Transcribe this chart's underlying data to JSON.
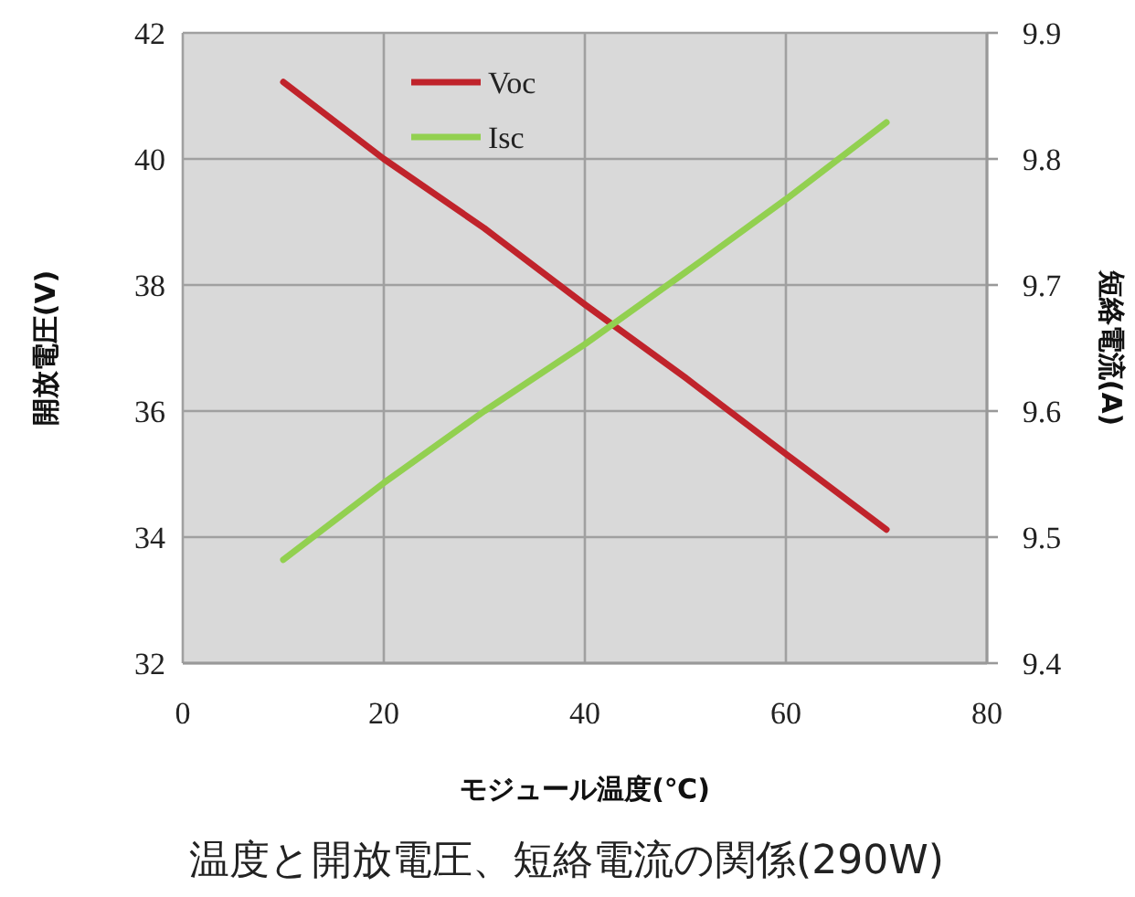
{
  "chart_data": {
    "type": "line",
    "title": "温度と開放電圧、短絡電流の関係(290W)",
    "xlabel": "モジュール温度(℃)",
    "ylabel": "開放電圧(V)",
    "y2label": "短絡電流(A)",
    "x": [
      10,
      20,
      30,
      40,
      50,
      60,
      70
    ],
    "series": [
      {
        "name": "Voc",
        "color": "#c0232b",
        "values": [
          41.22,
          40.0,
          38.9,
          37.69,
          36.53,
          35.32,
          34.12
        ]
      },
      {
        "name": "Isc",
        "color": "#92d050",
        "axis": "y2",
        "values": [
          9.482,
          9.543,
          9.6,
          9.653,
          9.71,
          9.768,
          9.829
        ]
      }
    ],
    "xlim": [
      0,
      80
    ],
    "xticks": [
      0,
      20,
      40,
      60,
      80
    ],
    "ylim": [
      32,
      42
    ],
    "yticks": [
      32,
      34,
      36,
      38,
      40,
      42
    ],
    "y2lim": [
      9.4,
      9.9
    ],
    "y2ticks": [
      9.4,
      9.5,
      9.6,
      9.7,
      9.8,
      9.9
    ],
    "grid": true,
    "legend": "top left",
    "marker": "none",
    "line_style": "solid"
  }
}
